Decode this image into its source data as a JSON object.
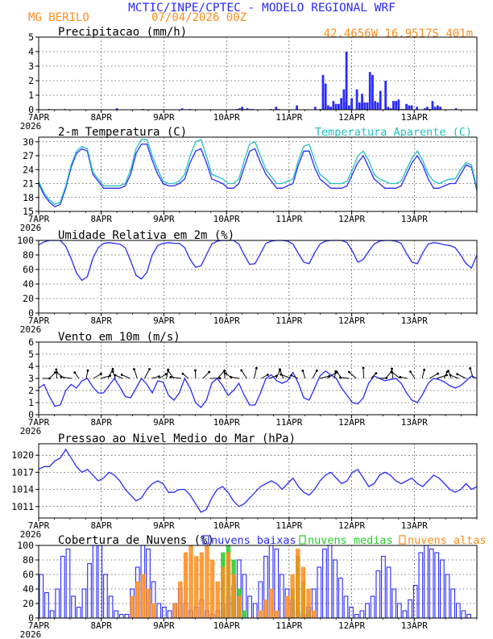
{
  "header": {
    "title": "MCTIC/INPE/CPTEC - MODELO REGIONAL WRF",
    "location": "MG BERILO",
    "run_date": "07/04/2026 00Z",
    "coords": "42.4656W 16.9517S 401m",
    "title_color": "#2a2aff",
    "accent_color": "#ff8c1a"
  },
  "time_axis": {
    "labels": [
      "7APR",
      "8APR",
      "9APR",
      "10APR",
      "11APR",
      "12APR",
      "13APR"
    ],
    "year": "2026",
    "hours_total": 168
  },
  "chart_data": [
    {
      "type": "bar",
      "title": "Precipitacao (mm/h)",
      "ylim": [
        0,
        5
      ],
      "yticks": [
        0,
        1,
        2,
        3,
        4,
        5
      ],
      "grid": true,
      "color": "#2a2aff",
      "x_hours": [
        4,
        10,
        30,
        40,
        55,
        58,
        76,
        77,
        78,
        79,
        80,
        81,
        82,
        89,
        91,
        92,
        106,
        108,
        109,
        110,
        111,
        112,
        113,
        114,
        115,
        116,
        117,
        118,
        119,
        120,
        122,
        123,
        124,
        125,
        126,
        127,
        128,
        129,
        130,
        131,
        133,
        134,
        135,
        136,
        137,
        138,
        139,
        140,
        141,
        142,
        143,
        145,
        148,
        149,
        150,
        151,
        152,
        153,
        154,
        160
      ],
      "values": [
        0.05,
        0.05,
        0.1,
        0.05,
        0.1,
        0.05,
        0.05,
        0.1,
        0.2,
        0.05,
        0.1,
        0.05,
        0.05,
        0.05,
        0.2,
        0.05,
        0.2,
        0.05,
        2.4,
        1.8,
        0.3,
        0.2,
        0.6,
        0.4,
        0.4,
        0.8,
        0.5,
        0.6,
        0.3,
        0.8,
        1.4,
        0.5,
        0.4,
        0.5,
        0.5,
        2.6,
        2.4,
        0.6,
        0.5,
        1.3,
        2.0,
        0.2,
        0.1,
        0.6,
        0.6,
        0.7,
        0.05,
        0.05,
        0.4,
        0.3,
        0.3,
        0.2,
        0.1,
        0.2,
        0.05,
        0.6,
        0.2,
        0.3,
        0.2,
        0.1
      ],
      "note_values": [
        1.4,
        4.0,
        1.1,
        0.3
      ]
    },
    {
      "type": "line",
      "title": "2-m Temperatura (C)",
      "ylim": [
        15,
        31
      ],
      "yticks": [
        15,
        18,
        21,
        24,
        27,
        30
      ],
      "grid": true,
      "series": [
        {
          "name": "",
          "color": "#2a2aff",
          "values": [
            21.0,
            18.5,
            17.0,
            16.0,
            16.5,
            20.0,
            24.5,
            27.5,
            28.5,
            28.0,
            23.0,
            21.5,
            20.0,
            20.0,
            20.0,
            20.0,
            20.5,
            23.0,
            27.5,
            29.5,
            29.5,
            26.0,
            23.0,
            21.0,
            20.5,
            20.5,
            21.0,
            22.0,
            25.5,
            28.0,
            28.5,
            25.5,
            22.0,
            21.5,
            21.0,
            20.0,
            20.0,
            21.0,
            24.5,
            28.0,
            28.5,
            25.5,
            23.0,
            21.5,
            20.0,
            20.0,
            20.5,
            21.0,
            25.0,
            28.0,
            28.0,
            24.5,
            22.0,
            21.0,
            20.0,
            20.0,
            20.0,
            20.5,
            23.0,
            25.5,
            27.0,
            24.5,
            22.0,
            21.0,
            20.0,
            20.0,
            20.0,
            20.5,
            23.0,
            25.5,
            27.0,
            25.0,
            22.0,
            20.0,
            20.0,
            20.5,
            21.0,
            21.0,
            23.0,
            25.0,
            24.5,
            19.5
          ]
        },
        {
          "name": "Temperatura Aparente (C)",
          "color": "#20c0c0",
          "values": [
            21.5,
            19.0,
            17.5,
            16.5,
            17.0,
            20.5,
            25.0,
            28.0,
            29.0,
            28.5,
            23.5,
            22.0,
            20.5,
            20.5,
            20.5,
            20.5,
            21.0,
            24.0,
            28.5,
            30.5,
            30.5,
            27.0,
            24.0,
            21.5,
            21.0,
            21.0,
            21.5,
            23.0,
            27.0,
            30.0,
            30.5,
            27.0,
            23.0,
            22.5,
            22.0,
            21.0,
            21.0,
            22.0,
            26.0,
            29.5,
            30.0,
            27.0,
            24.0,
            22.5,
            21.0,
            21.0,
            21.5,
            22.0,
            26.0,
            29.0,
            29.5,
            26.0,
            23.0,
            22.0,
            21.0,
            21.0,
            21.0,
            21.5,
            24.0,
            27.0,
            28.0,
            26.0,
            23.0,
            22.0,
            21.5,
            21.0,
            21.0,
            21.5,
            24.0,
            26.5,
            28.0,
            26.0,
            23.0,
            21.5,
            21.0,
            21.5,
            22.0,
            22.0,
            24.0,
            25.5,
            25.0,
            20.0
          ]
        }
      ]
    },
    {
      "type": "line",
      "title": "Umidade Relativa em 2m (%)",
      "ylim": [
        0,
        100
      ],
      "yticks": [
        0,
        20,
        40,
        60,
        80,
        100
      ],
      "grid": true,
      "series": [
        {
          "name": "",
          "color": "#2a2aff",
          "values": [
            94,
            98,
            100,
            100,
            100,
            92,
            75,
            55,
            45,
            50,
            75,
            90,
            96,
            97,
            96,
            95,
            90,
            72,
            52,
            47,
            56,
            80,
            93,
            96,
            97,
            96,
            96,
            90,
            74,
            63,
            65,
            80,
            95,
            99,
            100,
            100,
            100,
            95,
            80,
            67,
            68,
            82,
            96,
            99,
            100,
            100,
            99,
            95,
            82,
            70,
            68,
            83,
            95,
            99,
            100,
            100,
            100,
            97,
            85,
            70,
            74,
            85,
            95,
            99,
            100,
            100,
            99,
            96,
            82,
            70,
            68,
            83,
            95,
            97,
            96,
            94,
            93,
            90,
            80,
            68,
            62,
            80
          ]
        }
      ]
    },
    {
      "type": "line",
      "title": "Vento em 10m (m/s)",
      "ylim": [
        0,
        6
      ],
      "yticks": [
        0,
        1,
        2,
        3,
        4,
        5,
        6
      ],
      "grid": true,
      "series": [
        {
          "name": "",
          "color": "#2a2aff",
          "values": [
            2.2,
            2.5,
            1.5,
            0.7,
            0.8,
            2.0,
            2.5,
            2.2,
            2.8,
            3.0,
            2.3,
            1.8,
            1.8,
            2.4,
            3.0,
            2.3,
            1.5,
            1.4,
            2.2,
            3.0,
            2.5,
            1.8,
            2.8,
            2.7,
            1.6,
            1.2,
            1.8,
            3.0,
            2.2,
            1.0,
            0.6,
            1.2,
            2.6,
            3.0,
            2.4,
            1.6,
            2.0,
            2.6,
            1.6,
            0.8,
            0.8,
            1.8,
            3.0,
            3.3,
            2.8,
            2.6,
            2.8,
            3.5,
            2.6,
            1.4,
            1.2,
            2.2,
            3.2,
            3.6,
            3.3,
            3.0,
            2.2,
            1.6,
            1.0,
            0.9,
            1.4,
            2.6,
            3.2,
            3.0,
            2.8,
            2.9,
            3.0,
            2.6,
            1.8,
            1.2,
            1.0,
            1.7,
            2.6,
            3.0,
            2.9,
            2.7,
            2.4,
            2.2,
            2.4,
            2.8,
            3.2,
            3.0
          ]
        },
        {
          "name": "",
          "type": "barbs",
          "color": "#000000",
          "at": 3.0
        }
      ]
    },
    {
      "type": "line",
      "title": "Pressao ao Nivel Medio do Mar (hPa)",
      "ylim": [
        1009,
        1022
      ],
      "yticks": [
        1011,
        1014,
        1017,
        1020
      ],
      "grid": true,
      "series": [
        {
          "name": "",
          "color": "#2a2aff",
          "values": [
            1017.5,
            1018.0,
            1018.0,
            1019.0,
            1019.5,
            1021.0,
            1019.5,
            1018.0,
            1017.0,
            1017.5,
            1016.5,
            1015.5,
            1016.0,
            1017.0,
            1016.5,
            1015.5,
            1014.0,
            1013.0,
            1012.0,
            1012.5,
            1014.0,
            1015.0,
            1015.5,
            1015.0,
            1013.5,
            1013.5,
            1014.0,
            1014.0,
            1013.0,
            1011.5,
            1010.0,
            1010.5,
            1012.5,
            1014.0,
            1014.5,
            1013.5,
            1012.0,
            1011.0,
            1011.5,
            1012.5,
            1013.5,
            1014.5,
            1015.0,
            1015.5,
            1015.0,
            1014.0,
            1015.0,
            1016.0,
            1014.5,
            1013.5,
            1013.0,
            1014.0,
            1015.5,
            1016.5,
            1017.0,
            1016.0,
            1015.0,
            1015.5,
            1017.0,
            1017.5,
            1016.0,
            1014.5,
            1015.0,
            1016.5,
            1017.0,
            1016.5,
            1015.5,
            1015.0,
            1015.5,
            1016.0,
            1015.0,
            1014.5,
            1015.5,
            1016.5,
            1016.0,
            1015.0,
            1014.0,
            1013.5,
            1014.0,
            1015.0,
            1014.0,
            1014.5
          ]
        }
      ]
    },
    {
      "type": "bar",
      "title": "Cobertura de Nuvens (%)",
      "ylim": [
        0,
        100
      ],
      "yticks": [
        0,
        20,
        40,
        60,
        80,
        100
      ],
      "grid": true,
      "series": [
        {
          "name": "nuvens baixas",
          "color": "#2a2aff",
          "values": [
            60,
            35,
            10,
            40,
            85,
            95,
            30,
            15,
            40,
            75,
            100,
            100,
            60,
            30,
            10,
            5,
            5,
            40,
            70,
            100,
            95,
            50,
            20,
            15,
            10,
            20,
            40,
            20,
            10,
            15,
            25,
            10,
            5,
            10,
            20,
            30,
            45,
            80,
            60,
            30,
            20,
            50,
            85,
            100,
            95,
            60,
            40,
            25,
            10,
            5,
            15,
            40,
            70,
            95,
            100,
            80,
            55,
            30,
            15,
            5,
            10,
            20,
            30,
            65,
            85,
            70,
            40,
            20,
            10,
            25,
            45,
            90,
            100,
            95,
            90,
            80,
            60,
            40,
            20,
            10,
            5,
            0
          ]
        },
        {
          "name": "nuvens medias",
          "color": "#22cc22",
          "values": [
            0,
            0,
            0,
            0,
            0,
            0,
            0,
            0,
            0,
            0,
            0,
            0,
            0,
            0,
            0,
            0,
            0,
            0,
            0,
            0,
            0,
            0,
            0,
            0,
            0,
            0,
            0,
            0,
            0,
            0,
            0,
            0,
            0,
            0,
            90,
            100,
            80,
            40,
            10,
            0,
            0,
            0,
            0,
            0,
            0,
            0,
            0,
            40,
            85,
            50,
            10,
            0,
            0,
            0,
            0,
            0,
            0,
            0,
            0,
            0,
            0,
            0,
            0,
            0,
            0,
            0,
            0,
            0,
            0,
            0,
            0,
            0,
            0,
            0,
            0,
            0,
            0,
            0,
            0,
            0,
            0,
            0
          ]
        },
        {
          "name": "nuvens altas",
          "color": "#ff8c1a",
          "values": [
            0,
            0,
            0,
            0,
            0,
            0,
            0,
            0,
            0,
            0,
            0,
            0,
            0,
            0,
            0,
            0,
            0,
            30,
            50,
            60,
            40,
            20,
            0,
            0,
            0,
            20,
            50,
            90,
            100,
            85,
            90,
            100,
            80,
            50,
            70,
            90,
            60,
            30,
            0,
            0,
            0,
            10,
            25,
            40,
            10,
            0,
            30,
            60,
            95,
            70,
            40,
            10,
            0,
            0,
            0,
            0,
            0,
            0,
            0,
            0,
            0,
            0,
            0,
            0,
            0,
            0,
            0,
            0,
            0,
            0,
            0,
            0,
            0,
            0,
            0,
            0,
            0,
            0,
            0,
            0,
            0,
            0
          ]
        }
      ]
    }
  ]
}
